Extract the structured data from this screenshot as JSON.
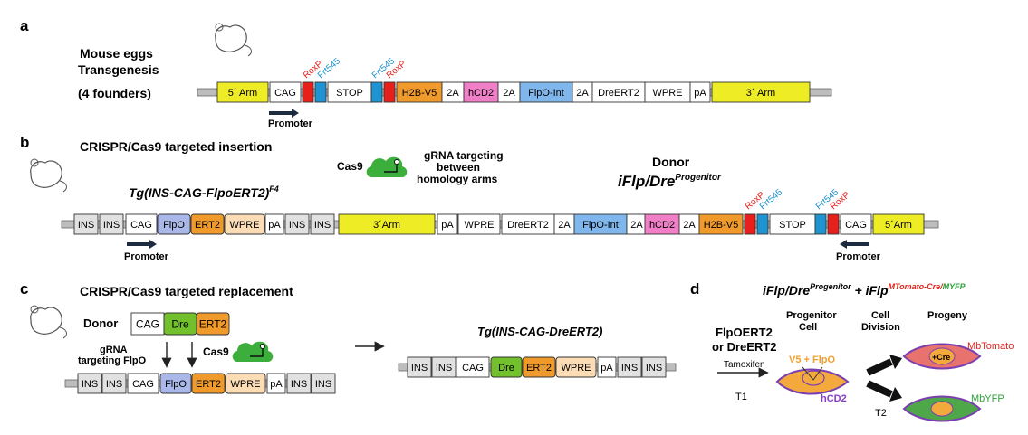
{
  "panel_a": {
    "letter": "a",
    "heading_line1": "Mouse eggs",
    "heading_line2": "Transgenesis",
    "founders": "(4 founders)",
    "mouse_icon": "mouse-icon",
    "elements": [
      "5´ Arm",
      "CAG",
      "",
      "",
      "STOP",
      "",
      "",
      "H2B-V5",
      "2A",
      "hCD2",
      "2A",
      "FlpO-Int",
      "2A",
      "DreERT2",
      "WPRE",
      "pA",
      "3´ Arm"
    ],
    "site_labels": [
      "RoxP",
      "Frt545",
      "Frt545",
      "RoxP"
    ],
    "promoter_label": "Promoter"
  },
  "panel_b": {
    "letter": "b",
    "heading": "CRISPR/Cas9 targeted insertion",
    "cas9_label": "Cas9",
    "grna_line1": "gRNA targeting",
    "grna_line2": "between",
    "grna_line3": "homology arms",
    "allele_main": "Tg(INS-CAG-FlpoERT2)",
    "allele_sup": "F4",
    "donor_label": "Donor",
    "donor_main": "iFlp/Dre",
    "donor_sup": "Progenitor",
    "elements": [
      "INS",
      "INS",
      "CAG",
      "FlpO",
      "ERT2",
      "WPRE",
      "pA",
      "INS",
      "INS",
      "3´Arm",
      "pA",
      "WPRE",
      "DreERT2",
      "2A",
      "FlpO-Int",
      "2A",
      "hCD2",
      "2A",
      "H2B-V5",
      "",
      "",
      "STOP",
      "",
      "",
      "CAG",
      "5´Arm"
    ],
    "site_labels": [
      "RoxP",
      "Frt545",
      "Frt545",
      "RoxP"
    ],
    "promoter_left": "Promoter",
    "promoter_right": "Promoter"
  },
  "panel_c": {
    "letter": "c",
    "heading": "CRISPR/Cas9 targeted replacement",
    "donor_label": "Donor",
    "donor_elements": [
      "CAG",
      "Dre",
      "ERT2"
    ],
    "grna_line1": "gRNA",
    "grna_line2": "targeting FlpO",
    "cas9_label": "Cas9",
    "bottom_elements": [
      "INS",
      "INS",
      "CAG",
      "FlpO",
      "ERT2",
      "WPRE",
      "pA",
      "INS",
      "INS"
    ],
    "result_title": "Tg(INS-CAG-DreERT2)",
    "result_elements": [
      "INS",
      "INS",
      "CAG",
      "Dre",
      "ERT2",
      "WPRE",
      "pA",
      "INS",
      "INS"
    ]
  },
  "panel_d": {
    "letter": "d",
    "title_a": "iFlp/Dre",
    "title_a_sup": "Progenitor",
    "title_plus": " + ",
    "title_b": "iFlp",
    "title_b_sup1": "MTomato-Cre/",
    "title_b_sup2": "MYFP",
    "col_progenitor_1": "Progenitor",
    "col_progenitor_2": "Cell",
    "col_division_1": "Cell",
    "col_division_2": "Division",
    "col_progeny": "Progeny",
    "flpo_line1": "FlpOERT2",
    "flpo_line2": "or DreERT2",
    "tamoxifen": "Tamoxifen",
    "t1": "T1",
    "t2": "T2",
    "v5_label": "V5 + FlpO",
    "hcd2_label": "hCD2",
    "cre_label": "+Cre",
    "mbtomato": "MbTomato",
    "mbyfp": "MbYFP"
  }
}
